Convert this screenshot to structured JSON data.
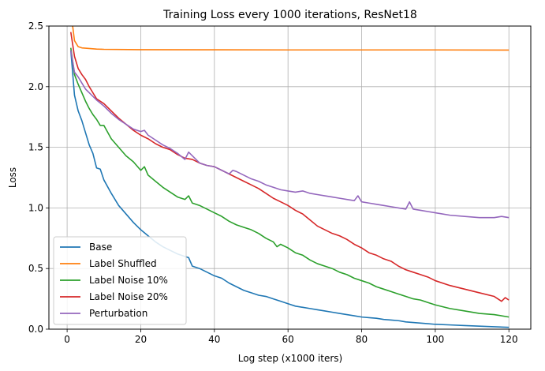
{
  "chart_data": {
    "type": "line",
    "title": "Training Loss every 1000 iterations, ResNet18",
    "xlabel": "Log step (x1000 iters)",
    "ylabel": "Loss",
    "xlim": [
      -4.95,
      125.95
    ],
    "ylim": [
      0,
      2.5
    ],
    "xticks": [
      0,
      20,
      40,
      60,
      80,
      100,
      120
    ],
    "yticks": [
      0.0,
      0.5,
      1.0,
      1.5,
      2.0,
      2.5
    ],
    "xtick_labels": [
      "0",
      "20",
      "40",
      "60",
      "80",
      "100",
      "120"
    ],
    "ytick_labels": [
      "0.0",
      "0.5",
      "1.0",
      "1.5",
      "2.0",
      "2.5"
    ],
    "grid": true,
    "legend_position": "lower-left",
    "series": [
      {
        "name": "Base",
        "color": "#1f77b4",
        "points": [
          [
            1,
            2.3
          ],
          [
            2,
            1.93
          ],
          [
            3,
            1.8
          ],
          [
            4,
            1.72
          ],
          [
            5,
            1.62
          ],
          [
            6,
            1.52
          ],
          [
            7,
            1.45
          ],
          [
            8,
            1.33
          ],
          [
            9,
            1.32
          ],
          [
            10,
            1.23
          ],
          [
            12,
            1.12
          ],
          [
            14,
            1.02
          ],
          [
            16,
            0.95
          ],
          [
            18,
            0.88
          ],
          [
            20,
            0.82
          ],
          [
            22,
            0.77
          ],
          [
            24,
            0.72
          ],
          [
            26,
            0.68
          ],
          [
            28,
            0.65
          ],
          [
            30,
            0.62
          ],
          [
            32,
            0.6
          ],
          [
            33,
            0.59
          ],
          [
            34,
            0.52
          ],
          [
            36,
            0.5
          ],
          [
            38,
            0.47
          ],
          [
            40,
            0.44
          ],
          [
            42,
            0.42
          ],
          [
            44,
            0.38
          ],
          [
            46,
            0.35
          ],
          [
            48,
            0.32
          ],
          [
            50,
            0.3
          ],
          [
            52,
            0.28
          ],
          [
            54,
            0.27
          ],
          [
            56,
            0.25
          ],
          [
            58,
            0.23
          ],
          [
            60,
            0.21
          ],
          [
            62,
            0.19
          ],
          [
            64,
            0.18
          ],
          [
            66,
            0.17
          ],
          [
            68,
            0.16
          ],
          [
            70,
            0.15
          ],
          [
            72,
            0.14
          ],
          [
            74,
            0.13
          ],
          [
            76,
            0.12
          ],
          [
            78,
            0.11
          ],
          [
            80,
            0.1
          ],
          [
            82,
            0.095
          ],
          [
            84,
            0.09
          ],
          [
            86,
            0.08
          ],
          [
            88,
            0.075
          ],
          [
            90,
            0.07
          ],
          [
            92,
            0.06
          ],
          [
            94,
            0.055
          ],
          [
            96,
            0.05
          ],
          [
            98,
            0.045
          ],
          [
            100,
            0.04
          ],
          [
            104,
            0.035
          ],
          [
            108,
            0.03
          ],
          [
            112,
            0.025
          ],
          [
            116,
            0.02
          ],
          [
            120,
            0.015
          ]
        ]
      },
      {
        "name": "Label Shuffled",
        "color": "#ff7f0e",
        "points": [
          [
            1,
            2.62
          ],
          [
            2,
            2.38
          ],
          [
            3,
            2.33
          ],
          [
            4,
            2.32
          ],
          [
            6,
            2.315
          ],
          [
            8,
            2.31
          ],
          [
            10,
            2.308
          ],
          [
            20,
            2.305
          ],
          [
            40,
            2.304
          ],
          [
            60,
            2.303
          ],
          [
            80,
            2.303
          ],
          [
            100,
            2.303
          ],
          [
            120,
            2.302
          ]
        ]
      },
      {
        "name": "Label Noise 10%",
        "color": "#2ca02c",
        "points": [
          [
            1,
            2.32
          ],
          [
            2,
            2.1
          ],
          [
            3,
            2.02
          ],
          [
            4,
            1.95
          ],
          [
            5,
            1.88
          ],
          [
            6,
            1.82
          ],
          [
            7,
            1.77
          ],
          [
            8,
            1.73
          ],
          [
            9,
            1.68
          ],
          [
            10,
            1.68
          ],
          [
            12,
            1.57
          ],
          [
            14,
            1.5
          ],
          [
            16,
            1.43
          ],
          [
            18,
            1.38
          ],
          [
            20,
            1.31
          ],
          [
            21,
            1.34
          ],
          [
            22,
            1.27
          ],
          [
            24,
            1.22
          ],
          [
            26,
            1.17
          ],
          [
            28,
            1.13
          ],
          [
            30,
            1.09
          ],
          [
            32,
            1.07
          ],
          [
            33,
            1.1
          ],
          [
            34,
            1.04
          ],
          [
            36,
            1.02
          ],
          [
            38,
            0.99
          ],
          [
            40,
            0.96
          ],
          [
            42,
            0.93
          ],
          [
            44,
            0.89
          ],
          [
            46,
            0.86
          ],
          [
            48,
            0.84
          ],
          [
            50,
            0.82
          ],
          [
            52,
            0.79
          ],
          [
            54,
            0.75
          ],
          [
            56,
            0.72
          ],
          [
            57,
            0.68
          ],
          [
            58,
            0.7
          ],
          [
            60,
            0.67
          ],
          [
            62,
            0.63
          ],
          [
            64,
            0.61
          ],
          [
            66,
            0.57
          ],
          [
            68,
            0.54
          ],
          [
            70,
            0.52
          ],
          [
            72,
            0.5
          ],
          [
            74,
            0.47
          ],
          [
            76,
            0.45
          ],
          [
            78,
            0.42
          ],
          [
            80,
            0.4
          ],
          [
            82,
            0.38
          ],
          [
            84,
            0.35
          ],
          [
            86,
            0.33
          ],
          [
            88,
            0.31
          ],
          [
            90,
            0.29
          ],
          [
            92,
            0.27
          ],
          [
            94,
            0.25
          ],
          [
            96,
            0.24
          ],
          [
            98,
            0.22
          ],
          [
            100,
            0.2
          ],
          [
            104,
            0.17
          ],
          [
            108,
            0.15
          ],
          [
            112,
            0.13
          ],
          [
            116,
            0.12
          ],
          [
            120,
            0.1
          ]
        ]
      },
      {
        "name": "Label Noise 20%",
        "color": "#d62728",
        "points": [
          [
            1,
            2.45
          ],
          [
            2,
            2.25
          ],
          [
            3,
            2.15
          ],
          [
            4,
            2.1
          ],
          [
            5,
            2.06
          ],
          [
            6,
            2.0
          ],
          [
            7,
            1.95
          ],
          [
            8,
            1.9
          ],
          [
            10,
            1.86
          ],
          [
            12,
            1.8
          ],
          [
            14,
            1.74
          ],
          [
            16,
            1.69
          ],
          [
            18,
            1.64
          ],
          [
            20,
            1.6
          ],
          [
            22,
            1.57
          ],
          [
            24,
            1.53
          ],
          [
            26,
            1.5
          ],
          [
            28,
            1.48
          ],
          [
            30,
            1.44
          ],
          [
            32,
            1.41
          ],
          [
            34,
            1.4
          ],
          [
            36,
            1.37
          ],
          [
            38,
            1.35
          ],
          [
            40,
            1.34
          ],
          [
            42,
            1.31
          ],
          [
            44,
            1.28
          ],
          [
            46,
            1.25
          ],
          [
            48,
            1.22
          ],
          [
            50,
            1.19
          ],
          [
            52,
            1.16
          ],
          [
            54,
            1.12
          ],
          [
            56,
            1.08
          ],
          [
            58,
            1.05
          ],
          [
            60,
            1.02
          ],
          [
            62,
            0.98
          ],
          [
            64,
            0.95
          ],
          [
            66,
            0.9
          ],
          [
            68,
            0.85
          ],
          [
            70,
            0.82
          ],
          [
            72,
            0.79
          ],
          [
            74,
            0.77
          ],
          [
            76,
            0.74
          ],
          [
            78,
            0.7
          ],
          [
            80,
            0.67
          ],
          [
            82,
            0.63
          ],
          [
            84,
            0.61
          ],
          [
            86,
            0.58
          ],
          [
            88,
            0.56
          ],
          [
            90,
            0.52
          ],
          [
            92,
            0.49
          ],
          [
            94,
            0.47
          ],
          [
            96,
            0.45
          ],
          [
            98,
            0.43
          ],
          [
            100,
            0.4
          ],
          [
            104,
            0.36
          ],
          [
            108,
            0.33
          ],
          [
            112,
            0.3
          ],
          [
            116,
            0.27
          ],
          [
            118,
            0.23
          ],
          [
            119,
            0.26
          ],
          [
            120,
            0.24
          ]
        ]
      },
      {
        "name": "Perturbation",
        "color": "#9467bd",
        "points": [
          [
            1,
            2.3
          ],
          [
            2,
            2.12
          ],
          [
            3,
            2.08
          ],
          [
            4,
            2.03
          ],
          [
            5,
            1.98
          ],
          [
            6,
            1.95
          ],
          [
            8,
            1.89
          ],
          [
            10,
            1.84
          ],
          [
            12,
            1.78
          ],
          [
            14,
            1.73
          ],
          [
            16,
            1.69
          ],
          [
            18,
            1.65
          ],
          [
            20,
            1.63
          ],
          [
            21,
            1.64
          ],
          [
            22,
            1.6
          ],
          [
            24,
            1.56
          ],
          [
            26,
            1.52
          ],
          [
            28,
            1.49
          ],
          [
            30,
            1.45
          ],
          [
            32,
            1.4
          ],
          [
            33,
            1.46
          ],
          [
            34,
            1.43
          ],
          [
            36,
            1.37
          ],
          [
            38,
            1.35
          ],
          [
            40,
            1.34
          ],
          [
            42,
            1.31
          ],
          [
            44,
            1.28
          ],
          [
            45,
            1.31
          ],
          [
            46,
            1.3
          ],
          [
            48,
            1.27
          ],
          [
            50,
            1.24
          ],
          [
            52,
            1.22
          ],
          [
            54,
            1.19
          ],
          [
            56,
            1.17
          ],
          [
            58,
            1.15
          ],
          [
            60,
            1.14
          ],
          [
            62,
            1.13
          ],
          [
            64,
            1.14
          ],
          [
            66,
            1.12
          ],
          [
            68,
            1.11
          ],
          [
            70,
            1.1
          ],
          [
            72,
            1.09
          ],
          [
            74,
            1.08
          ],
          [
            76,
            1.07
          ],
          [
            78,
            1.06
          ],
          [
            79,
            1.1
          ],
          [
            80,
            1.05
          ],
          [
            82,
            1.04
          ],
          [
            84,
            1.03
          ],
          [
            86,
            1.02
          ],
          [
            88,
            1.01
          ],
          [
            90,
            1.0
          ],
          [
            92,
            0.99
          ],
          [
            93,
            1.05
          ],
          [
            94,
            0.99
          ],
          [
            96,
            0.98
          ],
          [
            98,
            0.97
          ],
          [
            100,
            0.96
          ],
          [
            104,
            0.94
          ],
          [
            108,
            0.93
          ],
          [
            112,
            0.92
          ],
          [
            116,
            0.92
          ],
          [
            118,
            0.93
          ],
          [
            120,
            0.92
          ]
        ]
      }
    ]
  }
}
